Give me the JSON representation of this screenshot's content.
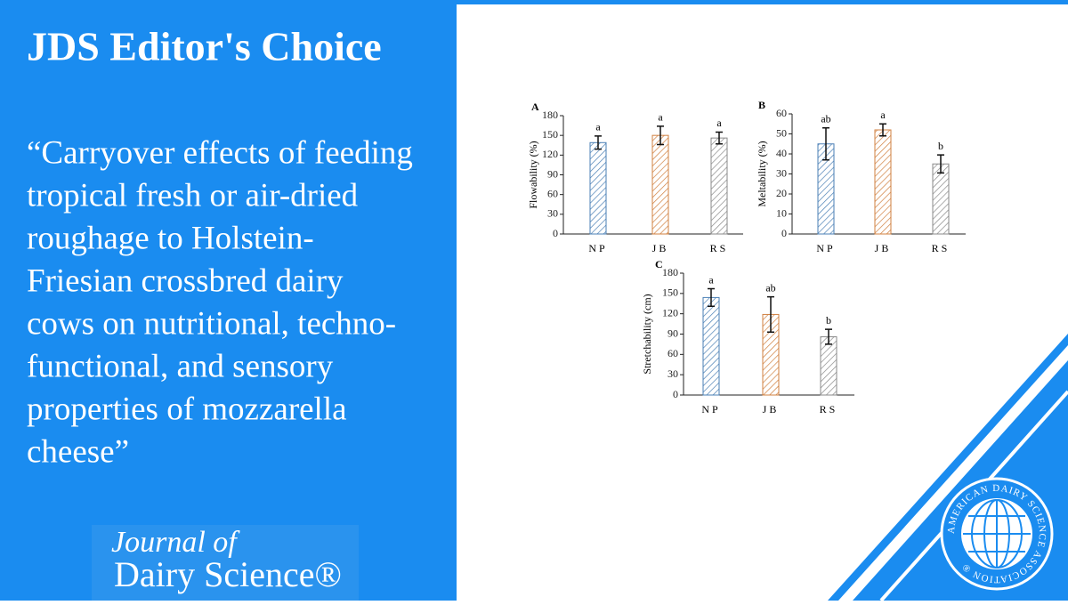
{
  "header": {
    "title": "JDS Editor's Choice"
  },
  "quote": {
    "lines": [
      "“Carryover effects of feeding",
      "tropical fresh or air-dried",
      "roughage to Holstein-",
      "Friesian crossbred dairy",
      "cows on nutritional, techno-",
      "functional, and sensory",
      "properties of mozzarella",
      "cheese”"
    ]
  },
  "journal_logo": {
    "line1": "Journal of",
    "line2": "Dairy Science®"
  },
  "association_logo": {
    "text": "AMERICAN DAIRY SCIENCE ASSOCIATION ®"
  },
  "chart_data": [
    {
      "type": "bar",
      "panel": "A",
      "y_label": "Flowability (%)",
      "categories": [
        "NP",
        "JB",
        "RS"
      ],
      "colors": [
        "#4a7fb5",
        "#d08040",
        "#8a8a8a"
      ],
      "values": [
        139,
        150,
        146
      ],
      "errors": [
        10,
        14,
        9
      ],
      "labels": [
        "a",
        "a",
        "a"
      ],
      "ylim": [
        0,
        180
      ],
      "yticks": [
        0,
        30,
        60,
        90,
        120,
        150,
        180
      ]
    },
    {
      "type": "bar",
      "panel": "B",
      "y_label": "Meltability (%)",
      "categories": [
        "NP",
        "JB",
        "RS"
      ],
      "colors": [
        "#4a7fb5",
        "#d08040",
        "#8a8a8a"
      ],
      "values": [
        45,
        52,
        35
      ],
      "errors": [
        8,
        3,
        4.5
      ],
      "labels": [
        "ab",
        "a",
        "b"
      ],
      "ylim": [
        0,
        60
      ],
      "yticks": [
        0,
        10,
        20,
        30,
        40,
        50,
        60
      ]
    },
    {
      "type": "bar",
      "panel": "C",
      "y_label": "Stretchability (cm)",
      "categories": [
        "NP",
        "JB",
        "RS"
      ],
      "colors": [
        "#4a7fb5",
        "#d08040",
        "#8a8a8a"
      ],
      "values": [
        144,
        119,
        86
      ],
      "errors": [
        13,
        26,
        11
      ],
      "labels": [
        "a",
        "ab",
        "b"
      ],
      "ylim": [
        0,
        180
      ],
      "yticks": [
        0,
        30,
        60,
        90,
        120,
        150,
        180
      ]
    }
  ]
}
